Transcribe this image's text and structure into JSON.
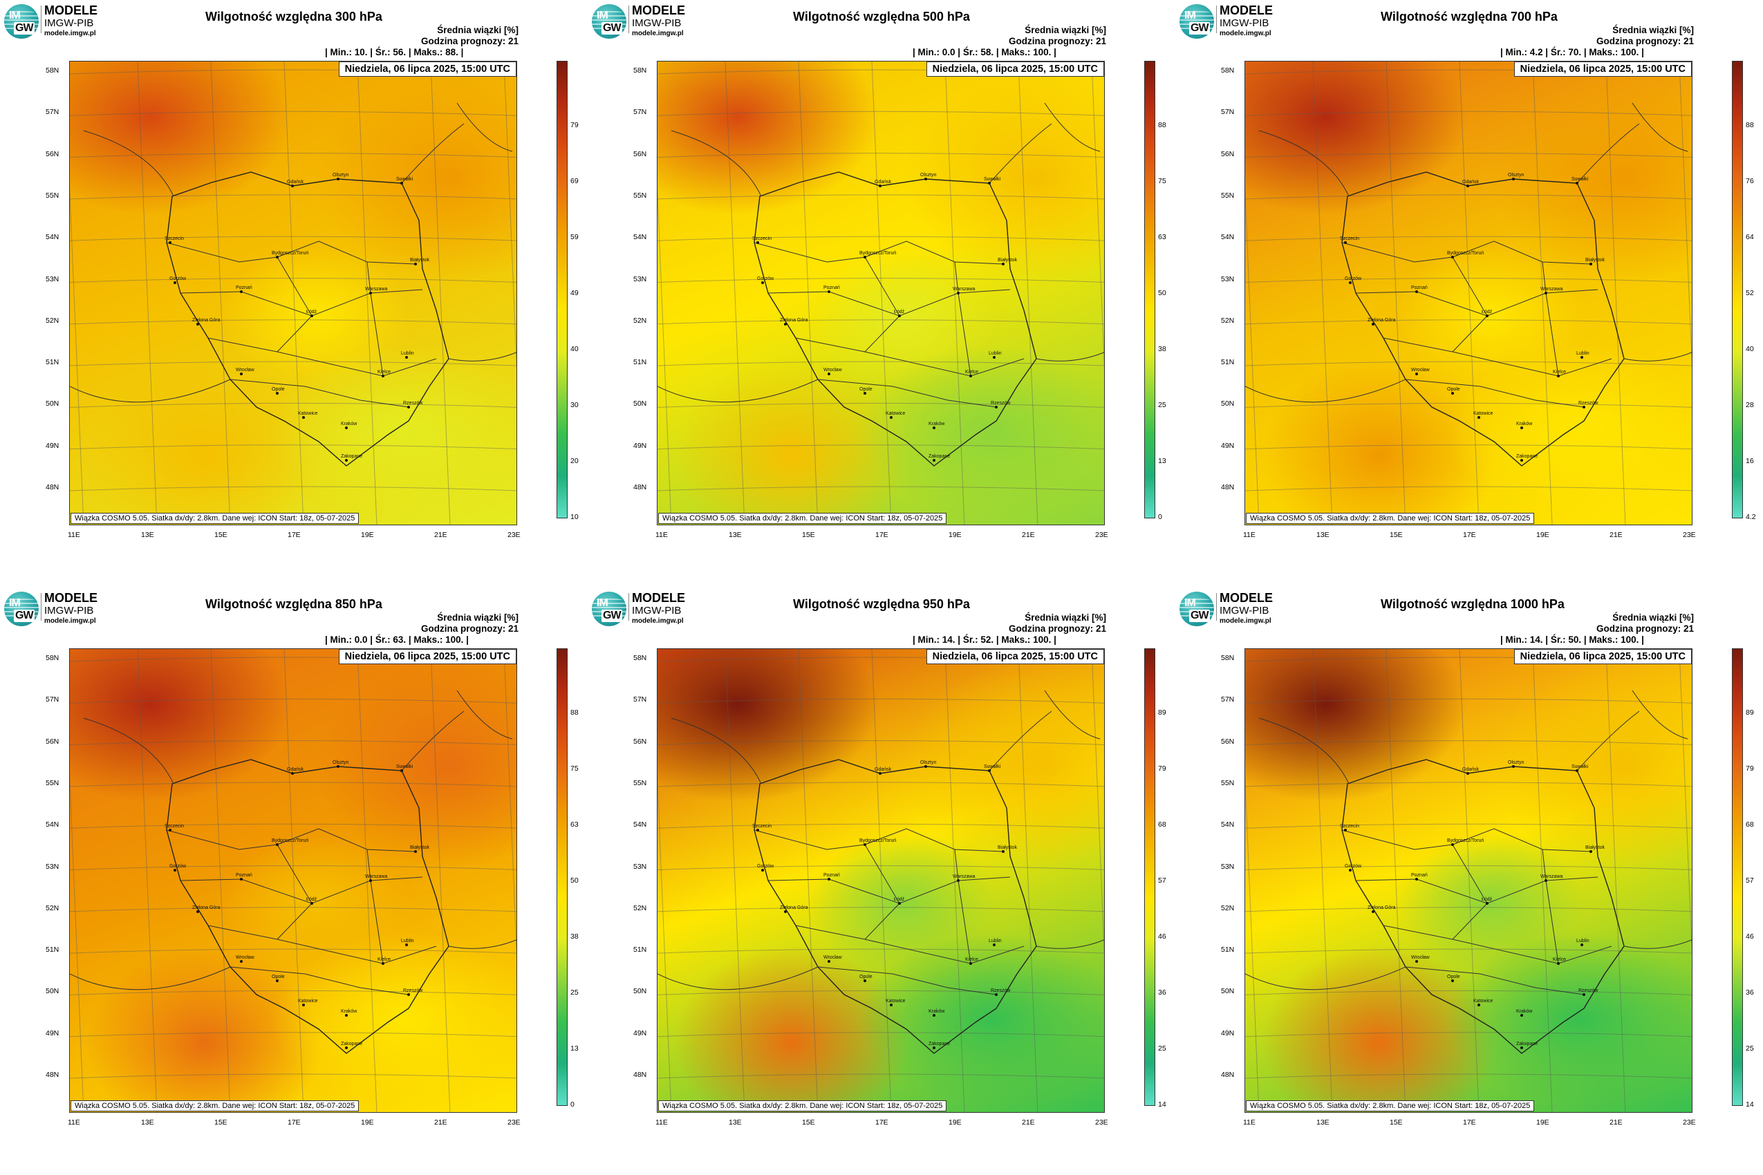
{
  "org": {
    "line1": "MODELE",
    "line2": "IMGW-PIB",
    "line3": "modele.imgw.pl",
    "logo_top": "IM",
    "logo_bottom": "GW"
  },
  "meta_label": "Średnia wiązki [%]",
  "forecast_hour": "Godzina prognozy: 21",
  "date": "Niedziela, 06 lipca 2025, 15:00 UTC",
  "footer": "Wiązka  COSMO 5.05. Siatka dx/dy: 2.8km. Dane wej: ICON Start: 18z, 05-07-2025",
  "lat_labels": [
    "58N",
    "57N",
    "56N",
    "55N",
    "54N",
    "53N",
    "52N",
    "51N",
    "50N",
    "49N",
    "48N"
  ],
  "lon_labels": [
    "11E",
    "13E",
    "15E",
    "17E",
    "19E",
    "21E",
    "23E"
  ],
  "cities": [
    "Gdańsk",
    "Olsztyn",
    "Suwałki",
    "Szczecin",
    "Bydgoszcz/Toruń",
    "Białystok",
    "Gorzów",
    "Poznań",
    "Warszawa",
    "Zielona Góra",
    "Łódź",
    "Lublin",
    "Wrocław",
    "Kielce",
    "Opole",
    "Katowice",
    "Kraków",
    "Rzeszów",
    "Zakopane"
  ],
  "colors": {
    "scale": [
      "#5ee0c8",
      "#1fb07a",
      "#38c050",
      "#8ed63a",
      "#e4ec20",
      "#ffe600",
      "#f5c000",
      "#f09a00",
      "#e87010",
      "#d84a10",
      "#b52a10",
      "#7a1a0c"
    ]
  },
  "panels": [
    {
      "title": "Wilgotność względna 300 hPa",
      "stats": "| Min.:     10. | Śr.:      56. | Maks.:     88. |",
      "cbar_ticks": [
        "79",
        "69",
        "59",
        "49",
        "40",
        "30",
        "20",
        "10"
      ],
      "humidity": [
        0.62,
        0.4
      ]
    },
    {
      "title": "Wilgotność względna 500 hPa",
      "stats": "| Min.:     0.0 | Śr.:      58. | Maks.:    100. |",
      "cbar_ticks": [
        "88",
        "75",
        "63",
        "50",
        "38",
        "25",
        "13",
        "0"
      ],
      "humidity": [
        0.58,
        0.3
      ]
    },
    {
      "title": "Wilgotność względna 700 hPa",
      "stats": "| Min.:     4.2 | Śr.:      70. | Maks.:    100. |",
      "cbar_ticks": [
        "88",
        "76",
        "64",
        "52",
        "40",
        "28",
        "16",
        "4.2"
      ],
      "humidity": [
        0.72,
        0.42
      ]
    },
    {
      "title": "Wilgotność względna 850 hPa",
      "stats": "| Min.:     0.0 | Śr.:      63. | Maks.:    100. |",
      "cbar_ticks": [
        "88",
        "75",
        "63",
        "50",
        "38",
        "25",
        "13",
        "0"
      ],
      "humidity": [
        0.75,
        0.45
      ]
    },
    {
      "title": "Wilgotność względna 950 hPa",
      "stats": "| Min.:     14. | Śr.:      52. | Maks.:    100. |",
      "cbar_ticks": [
        "89",
        "79",
        "68",
        "57",
        "46",
        "36",
        "25",
        "14"
      ],
      "humidity": [
        0.78,
        0.2
      ]
    },
    {
      "title": "Wilgotność względna 1000 hPa",
      "stats": "| Min.:     14. | Śr.:      50. | Maks.:    100. |",
      "cbar_ticks": [
        "89",
        "79",
        "68",
        "57",
        "46",
        "36",
        "25",
        "14"
      ],
      "humidity": [
        0.76,
        0.18
      ]
    }
  ]
}
